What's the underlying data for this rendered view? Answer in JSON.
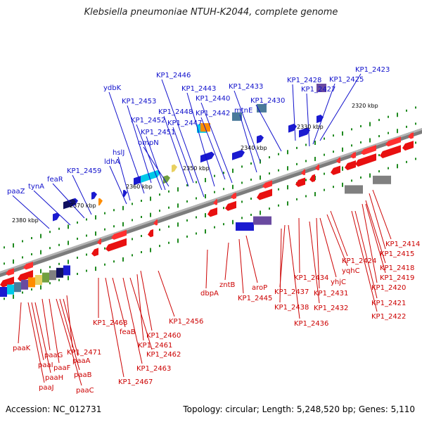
{
  "title": "Klebsiella pneumoniae NTUH-K2044, complete genome",
  "accession_text": "Accession: NC_012731",
  "stats_text": "Topology: circular; Length: 5,248,520 bp; Genes: 5,110",
  "colors": {
    "forward_label": "#1010cc",
    "reverse_label": "#cc0000",
    "backbone": "#8a8a8a",
    "tick": "#1f8a1f"
  },
  "kbp_ticks": [
    "2320 kbp",
    "2330 kbp",
    "2340 kbp",
    "2350 kbp",
    "2360 kbp",
    "2370 kbp",
    "2380 kbp"
  ],
  "forward_genes": [
    "KP1_2423",
    "KP1_2425",
    "KP1_2427",
    "KP1_2428",
    "KP1_2430",
    "KP1_2433",
    "mtnE",
    "KP1_2440",
    "KP1_2442",
    "KP1_2443",
    "KP1_2446",
    "KP1_2447",
    "KP1_2448",
    "ompN",
    "KP1_2451",
    "KP1_2452",
    "KP1_2453",
    "ydbK",
    "hslJ",
    "ldhA",
    "feaR",
    "KP1_2459",
    "tynA",
    "paaZ"
  ],
  "reverse_genes": [
    "KP1_2414",
    "KP1_2415",
    "KP1_2418",
    "KP1_2419",
    "KP1_2420",
    "KP1_2421",
    "KP1_2422",
    "KP1_2424",
    "yqhC",
    "yhjC",
    "KP1_2431",
    "KP1_2432",
    "KP1_2434",
    "KP1_2437",
    "KP1_2438",
    "KP1_2436",
    "aroP",
    "KP1_2445",
    "zntB",
    "dbpA",
    "KP1_2456",
    "KP1_2460",
    "KP1_2461",
    "KP1_2462",
    "KP1_2463",
    "KP1_2468",
    "feaB",
    "KP1_2467",
    "KP1_2471",
    "paaA",
    "paaB",
    "paaC",
    "paaF",
    "paaG",
    "paaH",
    "paaI",
    "paaJ",
    "paaK"
  ]
}
